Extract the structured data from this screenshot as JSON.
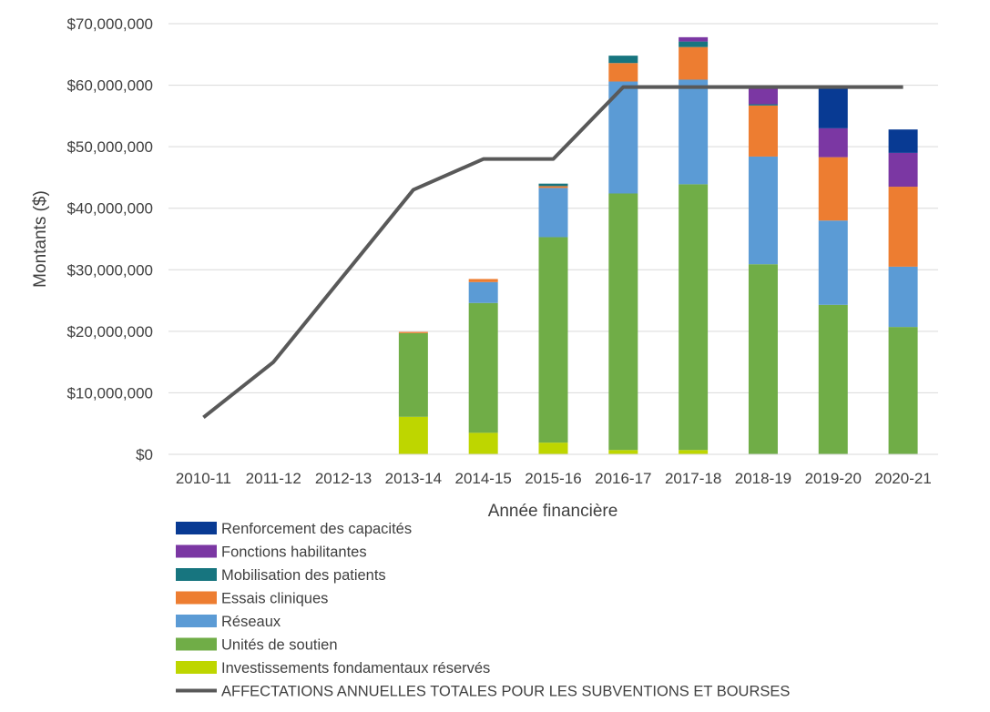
{
  "chart_data": {
    "type": "bar",
    "stacked": true,
    "xlabel": "Année financière",
    "ylabel": "Montants ($)",
    "ylim": [
      0,
      70000000
    ],
    "yticks": [
      0,
      10000000,
      20000000,
      30000000,
      40000000,
      50000000,
      60000000,
      70000000
    ],
    "ytick_labels": [
      "$0",
      "$10,000,000",
      "$20,000,000",
      "$30,000,000",
      "$40,000,000",
      "$50,000,000",
      "$60,000,000",
      "$70,000,000"
    ],
    "grid": "horizontal",
    "legend_position": "bottom",
    "categories": [
      "2010-11",
      "2011-12",
      "2012-13",
      "2013-14",
      "2014-15",
      "2015-16",
      "2016-17",
      "2017-18",
      "2018-19",
      "2019-20",
      "2020-21"
    ],
    "series": [
      {
        "name": "Investissements fondamentaux réservés",
        "color": "#bed600",
        "values": [
          0,
          0,
          0,
          6100000,
          3500000,
          1900000,
          700000,
          700000,
          0,
          0,
          0
        ]
      },
      {
        "name": "Unités de soutien",
        "color": "#70ad47",
        "values": [
          0,
          0,
          0,
          13600000,
          21100000,
          33400000,
          41700000,
          43200000,
          30900000,
          24300000,
          20700000
        ]
      },
      {
        "name": "Réseaux",
        "color": "#5b9bd5",
        "values": [
          0,
          0,
          0,
          0,
          3400000,
          8000000,
          18200000,
          17000000,
          17500000,
          13700000,
          9800000
        ]
      },
      {
        "name": "Essais cliniques",
        "color": "#ed7d31",
        "values": [
          0,
          0,
          0,
          200000,
          500000,
          300000,
          3000000,
          5300000,
          8300000,
          10300000,
          13000000
        ]
      },
      {
        "name": "Mobilisation des patients",
        "color": "#17757f",
        "values": [
          0,
          0,
          0,
          0,
          0,
          400000,
          1200000,
          900000,
          200000,
          0,
          0
        ]
      },
      {
        "name": "Fonctions habilitantes",
        "color": "#7b37a3",
        "values": [
          0,
          0,
          0,
          0,
          0,
          0,
          0,
          700000,
          2700000,
          4700000,
          5500000
        ]
      },
      {
        "name": "Renforcement des capacités",
        "color": "#083a93",
        "values": [
          0,
          0,
          0,
          0,
          0,
          0,
          0,
          0,
          0,
          6500000,
          3800000
        ]
      }
    ],
    "line": {
      "name": "AFFECTATIONS ANNUELLES TOTALES POUR LES SUBVENTIONS ET BOURSES",
      "color": "#595959",
      "values": [
        6000000,
        15000000,
        29000000,
        43000000,
        48000000,
        48000000,
        59700000,
        59700000,
        59700000,
        59700000,
        59700000
      ]
    },
    "legend_order": [
      "Renforcement des capacités",
      "Fonctions habilitantes",
      "Mobilisation des patients",
      "Essais cliniques",
      "Réseaux",
      "Unités de soutien",
      "Investissements fondamentaux réservés",
      "AFFECTATIONS ANNUELLES TOTALES POUR LES SUBVENTIONS ET BOURSES"
    ]
  }
}
